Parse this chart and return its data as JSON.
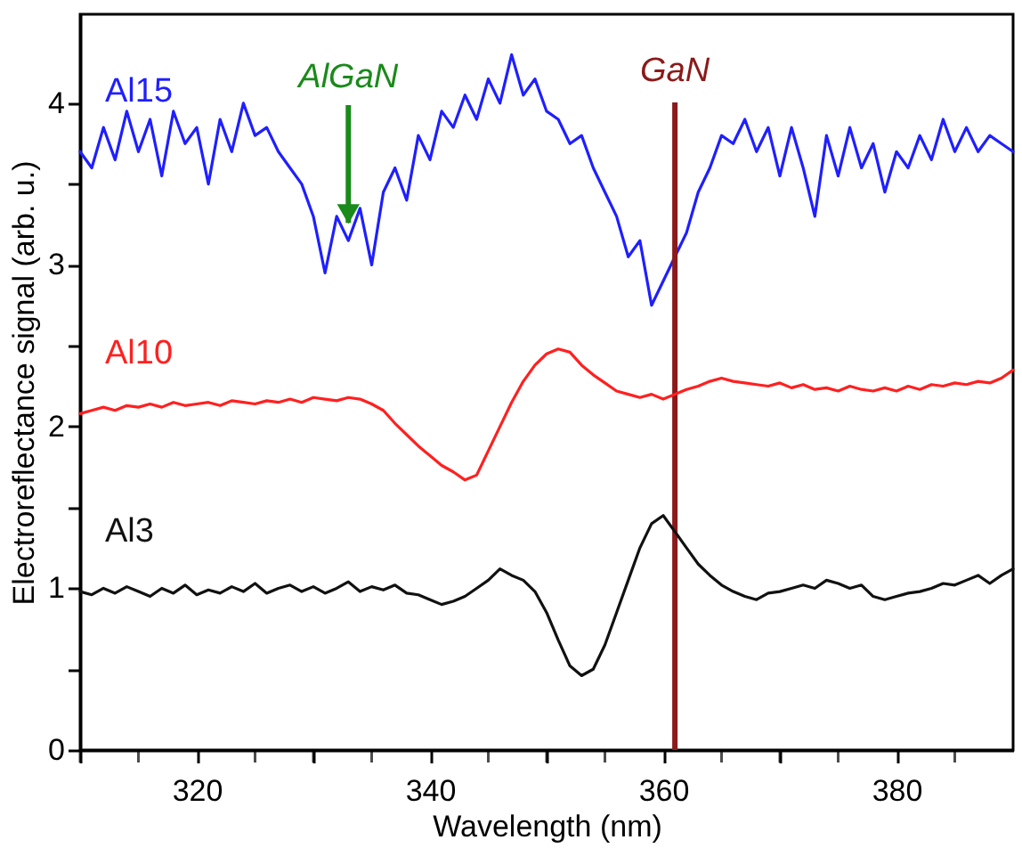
{
  "chart_data": {
    "type": "line",
    "xlabel": "Wavelength (nm)",
    "ylabel": "Electroreflectance signal (arb. u.)",
    "x": [
      310,
      311,
      312,
      313,
      314,
      315,
      316,
      317,
      318,
      319,
      320,
      321,
      322,
      323,
      324,
      325,
      326,
      327,
      328,
      329,
      330,
      331,
      332,
      333,
      334,
      335,
      336,
      337,
      338,
      339,
      340,
      341,
      342,
      343,
      344,
      345,
      346,
      347,
      348,
      349,
      350,
      351,
      352,
      353,
      354,
      355,
      356,
      357,
      358,
      359,
      360,
      361,
      362,
      363,
      364,
      365,
      366,
      367,
      368,
      369,
      370,
      371,
      372,
      373,
      374,
      375,
      376,
      377,
      378,
      379,
      380,
      381,
      382,
      383,
      384,
      385,
      386,
      387,
      388,
      389,
      390
    ],
    "series": [
      {
        "name": "Al15",
        "color": "#1f1fff",
        "values": [
          3.7,
          3.6,
          3.85,
          3.65,
          3.95,
          3.7,
          3.9,
          3.55,
          3.95,
          3.75,
          3.85,
          3.5,
          3.9,
          3.7,
          4.0,
          3.8,
          3.85,
          3.7,
          3.6,
          3.5,
          3.3,
          2.95,
          3.3,
          3.15,
          3.35,
          3.0,
          3.45,
          3.6,
          3.4,
          3.8,
          3.65,
          3.95,
          3.85,
          4.05,
          3.9,
          4.15,
          4.0,
          4.3,
          4.05,
          4.15,
          3.95,
          3.9,
          3.75,
          3.8,
          3.6,
          3.45,
          3.3,
          3.05,
          3.15,
          2.75,
          2.9,
          3.05,
          3.2,
          3.45,
          3.6,
          3.8,
          3.75,
          3.9,
          3.7,
          3.85,
          3.55,
          3.85,
          3.6,
          3.3,
          3.8,
          3.55,
          3.85,
          3.6,
          3.75,
          3.45,
          3.7,
          3.6,
          3.8,
          3.65,
          3.9,
          3.7,
          3.85,
          3.7,
          3.8,
          3.75,
          3.7
        ]
      },
      {
        "name": "Al10",
        "color": "#ff2020",
        "values": [
          2.08,
          2.1,
          2.12,
          2.1,
          2.13,
          2.12,
          2.14,
          2.12,
          2.15,
          2.13,
          2.14,
          2.15,
          2.13,
          2.16,
          2.15,
          2.14,
          2.16,
          2.15,
          2.17,
          2.15,
          2.18,
          2.17,
          2.16,
          2.18,
          2.17,
          2.14,
          2.1,
          2.02,
          1.95,
          1.88,
          1.82,
          1.76,
          1.72,
          1.67,
          1.7,
          1.85,
          2.0,
          2.15,
          2.28,
          2.38,
          2.45,
          2.48,
          2.46,
          2.38,
          2.32,
          2.27,
          2.22,
          2.2,
          2.18,
          2.2,
          2.17,
          2.2,
          2.23,
          2.25,
          2.28,
          2.3,
          2.28,
          2.27,
          2.26,
          2.25,
          2.27,
          2.24,
          2.26,
          2.23,
          2.24,
          2.22,
          2.25,
          2.23,
          2.22,
          2.24,
          2.22,
          2.25,
          2.23,
          2.26,
          2.25,
          2.27,
          2.26,
          2.28,
          2.27,
          2.3,
          2.35
        ]
      },
      {
        "name": "Al3",
        "color": "#111111",
        "values": [
          0.98,
          0.96,
          1.0,
          0.97,
          1.01,
          0.98,
          0.95,
          1.0,
          0.97,
          1.02,
          0.96,
          0.99,
          0.97,
          1.01,
          0.98,
          1.03,
          0.97,
          1.0,
          1.02,
          0.98,
          1.01,
          0.97,
          1.0,
          1.04,
          0.98,
          1.01,
          0.99,
          1.02,
          0.97,
          0.96,
          0.93,
          0.9,
          0.92,
          0.95,
          1.0,
          1.05,
          1.12,
          1.08,
          1.05,
          0.98,
          0.85,
          0.68,
          0.52,
          0.46,
          0.5,
          0.65,
          0.85,
          1.05,
          1.25,
          1.4,
          1.45,
          1.35,
          1.25,
          1.15,
          1.08,
          1.02,
          0.98,
          0.95,
          0.93,
          0.97,
          0.98,
          1.0,
          1.02,
          1.0,
          1.05,
          1.03,
          1.0,
          1.02,
          0.95,
          0.93,
          0.95,
          0.97,
          0.98,
          1.0,
          1.03,
          1.02,
          1.05,
          1.08,
          1.03,
          1.08,
          1.12
        ]
      }
    ],
    "xlim": [
      310,
      390
    ],
    "xticks": [
      {
        "value": 310,
        "label": null
      },
      {
        "value": 315,
        "label": null
      },
      320,
      {
        "value": 325,
        "label": null
      },
      {
        "value": 330,
        "label": null
      },
      {
        "value": 335,
        "label": null
      },
      340,
      {
        "value": 345,
        "label": null
      },
      {
        "value": 350,
        "label": null
      },
      {
        "value": 355,
        "label": null
      },
      360,
      {
        "value": 365,
        "label": null
      },
      {
        "value": 370,
        "label": null
      },
      {
        "value": 375,
        "label": null
      },
      380,
      {
        "value": 385,
        "label": null
      }
    ],
    "ylim": [
      0,
      4.55
    ],
    "yticks": [
      0,
      {
        "value": 0.5,
        "label": null
      },
      1,
      {
        "value": 1.5,
        "label": null
      },
      2,
      {
        "value": 2.5,
        "label": null
      },
      3,
      {
        "value": 3.5,
        "label": null
      },
      4
    ],
    "ref_lines": [
      {
        "axis": "x",
        "value": 361,
        "label": "GaN",
        "color": "#8b1a1a"
      }
    ],
    "annotations": [
      {
        "text": "AlGaN",
        "x": 333,
        "y": 3.26
      }
    ],
    "grid": false,
    "marker": "none",
    "line_style": "solid"
  }
}
